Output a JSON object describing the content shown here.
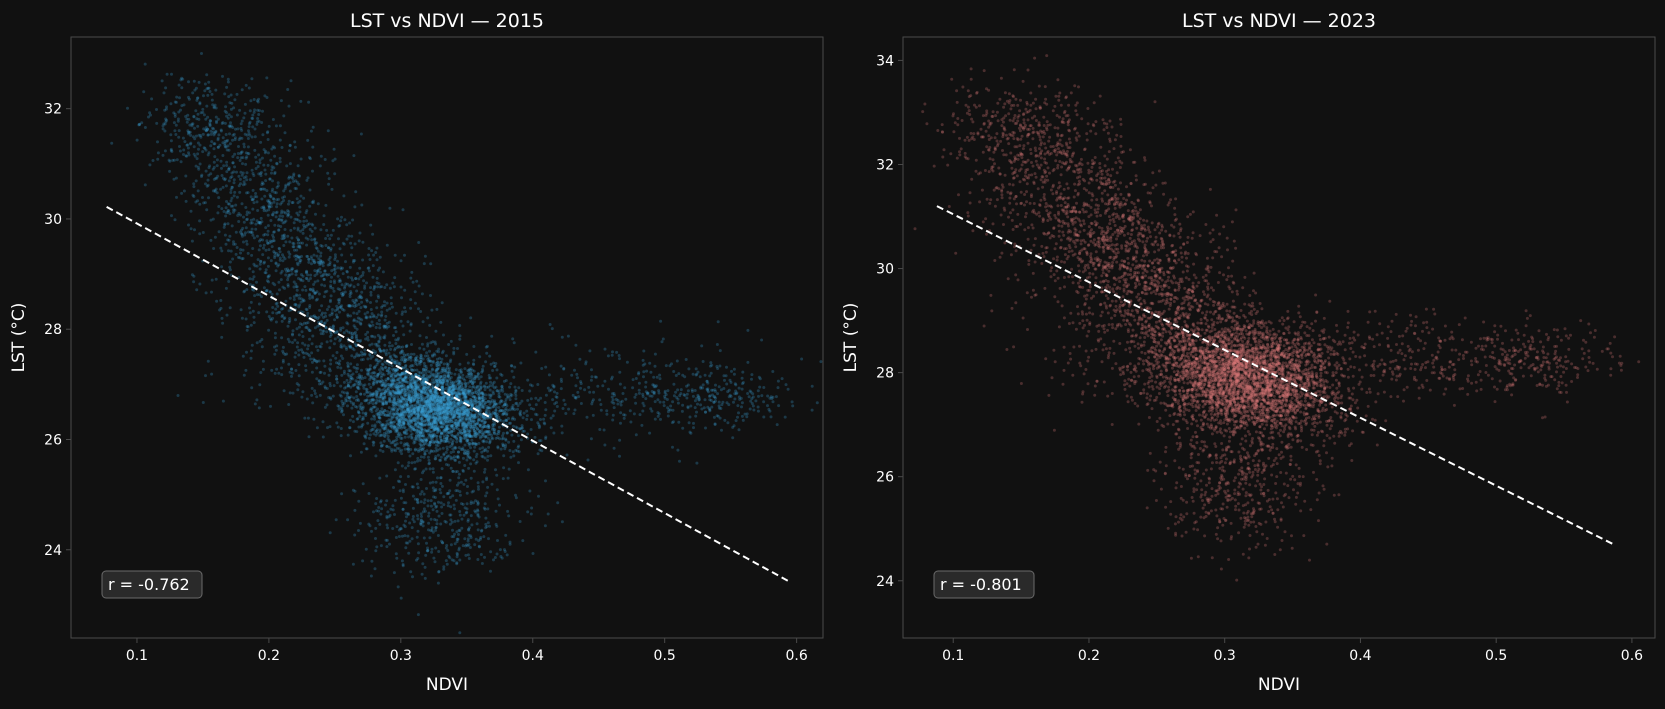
{
  "colors": {
    "background": "#111111",
    "axes_face": "#111111",
    "spine": "#4a4a4a",
    "text": "#ffffff",
    "fit_line": "#ffffff",
    "annotation_box_fill": "#2e2e2e",
    "annotation_box_edge": "#6a6a6a"
  },
  "chart_data": [
    {
      "type": "scatter",
      "title": "LST vs NDVI — 2015",
      "xlabel": "NDVI",
      "ylabel": "LST (°C)",
      "xlim": [
        0.05,
        0.62
      ],
      "ylim": [
        22.4,
        33.3
      ],
      "xticks": [
        0.1,
        0.2,
        0.3,
        0.4,
        0.5,
        0.6
      ],
      "xtick_labels": [
        "0.1",
        "0.2",
        "0.3",
        "0.4",
        "0.5",
        "0.6"
      ],
      "yticks": [
        24,
        26,
        28,
        30,
        32
      ],
      "ytick_labels": [
        "24",
        "26",
        "28",
        "30",
        "32"
      ],
      "grid": false,
      "point_color": "#3ba3d6",
      "annotation": "r = -0.762",
      "trend_line": {
        "x": [
          0.077,
          0.594
        ],
        "y": [
          30.22,
          23.43
        ],
        "style": "dashed"
      },
      "clusters": [
        {
          "n": 3200,
          "cx": 0.325,
          "cy": 26.6,
          "sx": 0.03,
          "sy": 0.42,
          "rho": -0.2
        },
        {
          "n": 1200,
          "cx": 0.25,
          "cy": 28.4,
          "sx": 0.045,
          "sy": 1.1,
          "rho": -0.6
        },
        {
          "n": 500,
          "cx": 0.19,
          "cy": 30.6,
          "sx": 0.03,
          "sy": 0.9,
          "rho": -0.3
        },
        {
          "n": 250,
          "cx": 0.15,
          "cy": 31.7,
          "sx": 0.025,
          "sy": 0.45,
          "rho": -0.2
        },
        {
          "n": 450,
          "cx": 0.33,
          "cy": 24.6,
          "sx": 0.03,
          "sy": 0.6,
          "rho": 0.0
        },
        {
          "n": 350,
          "cx": 0.46,
          "cy": 26.8,
          "sx": 0.06,
          "sy": 0.45,
          "rho": 0.0
        },
        {
          "n": 180,
          "cx": 0.54,
          "cy": 26.8,
          "sx": 0.03,
          "sy": 0.3,
          "rho": 0.0
        },
        {
          "n": 120,
          "cx": 0.22,
          "cy": 27.6,
          "sx": 0.04,
          "sy": 0.7,
          "rho": 0.0
        }
      ]
    },
    {
      "type": "scatter",
      "title": "LST vs NDVI — 2023",
      "xlabel": "NDVI",
      "ylabel": "LST (°C)",
      "xlim": [
        0.063,
        0.617
      ],
      "ylim": [
        22.9,
        34.45
      ],
      "xticks": [
        0.1,
        0.2,
        0.3,
        0.4,
        0.5,
        0.6
      ],
      "xtick_labels": [
        "0.1",
        "0.2",
        "0.3",
        "0.4",
        "0.5",
        "0.6"
      ],
      "yticks": [
        24,
        26,
        28,
        30,
        32,
        34
      ],
      "ytick_labels": [
        "24",
        "26",
        "28",
        "30",
        "32",
        "34"
      ],
      "grid": false,
      "point_color": "#e07a7a",
      "annotation": "r = -0.801",
      "trend_line": {
        "x": [
          0.088,
          0.588
        ],
        "y": [
          31.2,
          24.68
        ],
        "style": "dashed"
      },
      "clusters": [
        {
          "n": 3400,
          "cx": 0.315,
          "cy": 27.9,
          "sx": 0.035,
          "sy": 0.55,
          "rho": -0.2
        },
        {
          "n": 1300,
          "cx": 0.24,
          "cy": 29.8,
          "sx": 0.04,
          "sy": 1.1,
          "rho": -0.6
        },
        {
          "n": 550,
          "cx": 0.18,
          "cy": 31.6,
          "sx": 0.035,
          "sy": 0.9,
          "rho": -0.3
        },
        {
          "n": 250,
          "cx": 0.15,
          "cy": 32.6,
          "sx": 0.03,
          "sy": 0.5,
          "rho": -0.2
        },
        {
          "n": 450,
          "cx": 0.31,
          "cy": 25.8,
          "sx": 0.03,
          "sy": 0.6,
          "rho": 0.0
        },
        {
          "n": 350,
          "cx": 0.45,
          "cy": 28.3,
          "sx": 0.06,
          "sy": 0.45,
          "rho": 0.0
        },
        {
          "n": 160,
          "cx": 0.53,
          "cy": 28.2,
          "sx": 0.03,
          "sy": 0.35,
          "rho": 0.0
        },
        {
          "n": 120,
          "cx": 0.22,
          "cy": 28.8,
          "sx": 0.04,
          "sy": 0.8,
          "rho": 0.0
        }
      ]
    }
  ]
}
